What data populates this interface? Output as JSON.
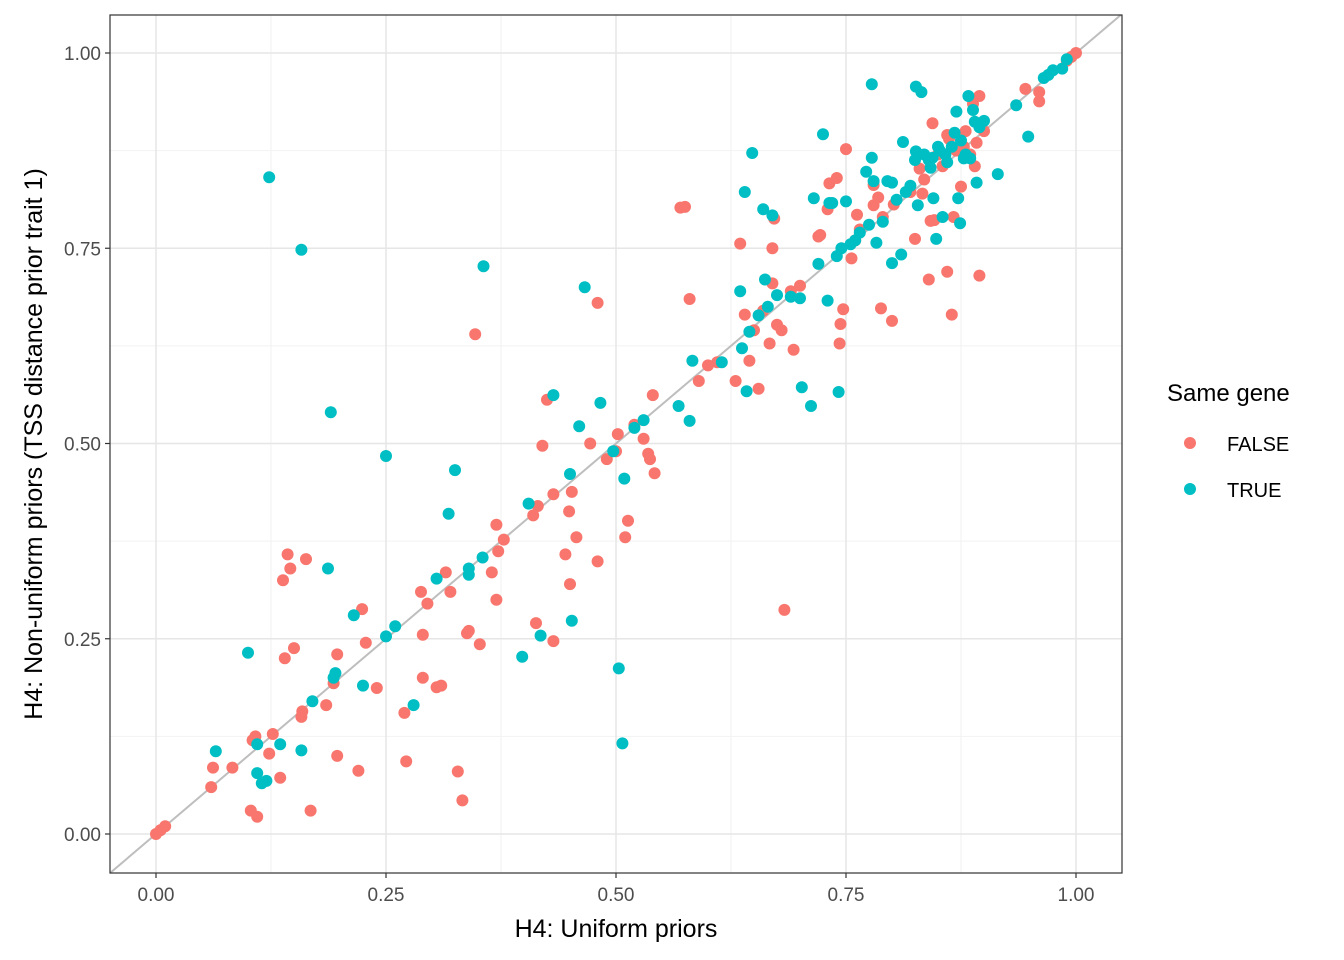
{
  "chart_data": {
    "type": "scatter",
    "title": "",
    "xlabel": "H4: Uniform priors",
    "ylabel": "H4: Non-uniform priors (TSS distance prior trait 1)",
    "xlim": [
      -0.045,
      1.045
    ],
    "ylim": [
      -0.05,
      1.05
    ],
    "x_ticks": [
      "0.00",
      "0.25",
      "0.50",
      "0.75",
      "1.00"
    ],
    "y_ticks": [
      "0.00",
      "0.25",
      "0.50",
      "0.75",
      "1.00"
    ],
    "grid": true,
    "reference_line": "y = x",
    "legend": {
      "title": "Same gene",
      "position": "right",
      "entries": [
        {
          "name": "FALSE",
          "color": "#F8766D"
        },
        {
          "name": "TRUE",
          "color": "#00BFC4"
        }
      ]
    },
    "series": [
      {
        "name": "FALSE",
        "color": "#F8766D",
        "points": [
          [
            0.0,
            0.0
          ],
          [
            0.005,
            0.005
          ],
          [
            0.01,
            0.01
          ],
          [
            0.06,
            0.06
          ],
          [
            0.062,
            0.085
          ],
          [
            0.083,
            0.085
          ],
          [
            0.103,
            0.03
          ],
          [
            0.105,
            0.12
          ],
          [
            0.108,
            0.125
          ],
          [
            0.11,
            0.022
          ],
          [
            0.123,
            0.103
          ],
          [
            0.127,
            0.128
          ],
          [
            0.135,
            0.072
          ],
          [
            0.138,
            0.325
          ],
          [
            0.14,
            0.225
          ],
          [
            0.143,
            0.358
          ],
          [
            0.146,
            0.34
          ],
          [
            0.15,
            0.238
          ],
          [
            0.158,
            0.15
          ],
          [
            0.159,
            0.157
          ],
          [
            0.163,
            0.352
          ],
          [
            0.168,
            0.03
          ],
          [
            0.185,
            0.165
          ],
          [
            0.193,
            0.193
          ],
          [
            0.197,
            0.1
          ],
          [
            0.197,
            0.23
          ],
          [
            0.22,
            0.081
          ],
          [
            0.224,
            0.288
          ],
          [
            0.228,
            0.245
          ],
          [
            0.24,
            0.187
          ],
          [
            0.27,
            0.155
          ],
          [
            0.272,
            0.093
          ],
          [
            0.288,
            0.31
          ],
          [
            0.29,
            0.255
          ],
          [
            0.29,
            0.2
          ],
          [
            0.295,
            0.295
          ],
          [
            0.305,
            0.188
          ],
          [
            0.31,
            0.19
          ],
          [
            0.315,
            0.335
          ],
          [
            0.32,
            0.31
          ],
          [
            0.328,
            0.08
          ],
          [
            0.333,
            0.043
          ],
          [
            0.338,
            0.257
          ],
          [
            0.34,
            0.26
          ],
          [
            0.347,
            0.64
          ],
          [
            0.352,
            0.243
          ],
          [
            0.365,
            0.335
          ],
          [
            0.37,
            0.396
          ],
          [
            0.37,
            0.3
          ],
          [
            0.372,
            0.362
          ],
          [
            0.378,
            0.377
          ],
          [
            0.41,
            0.408
          ],
          [
            0.413,
            0.27
          ],
          [
            0.415,
            0.42
          ],
          [
            0.42,
            0.497
          ],
          [
            0.425,
            0.556
          ],
          [
            0.432,
            0.247
          ],
          [
            0.432,
            0.435
          ],
          [
            0.445,
            0.358
          ],
          [
            0.449,
            0.413
          ],
          [
            0.45,
            0.32
          ],
          [
            0.452,
            0.438
          ],
          [
            0.457,
            0.38
          ],
          [
            0.472,
            0.5
          ],
          [
            0.48,
            0.68
          ],
          [
            0.48,
            0.349
          ],
          [
            0.49,
            0.48
          ],
          [
            0.5,
            0.49
          ],
          [
            0.502,
            0.512
          ],
          [
            0.51,
            0.38
          ],
          [
            0.513,
            0.401
          ],
          [
            0.52,
            0.524
          ],
          [
            0.53,
            0.506
          ],
          [
            0.535,
            0.487
          ],
          [
            0.537,
            0.48
          ],
          [
            0.54,
            0.562
          ],
          [
            0.542,
            0.462
          ],
          [
            0.57,
            0.802
          ],
          [
            0.575,
            0.803
          ],
          [
            0.58,
            0.685
          ],
          [
            0.59,
            0.58
          ],
          [
            0.6,
            0.6
          ],
          [
            0.61,
            0.604
          ],
          [
            0.63,
            0.58
          ],
          [
            0.635,
            0.756
          ],
          [
            0.64,
            0.665
          ],
          [
            0.645,
            0.606
          ],
          [
            0.65,
            0.645
          ],
          [
            0.655,
            0.57
          ],
          [
            0.66,
            0.67
          ],
          [
            0.667,
            0.628
          ],
          [
            0.67,
            0.705
          ],
          [
            0.67,
            0.75
          ],
          [
            0.672,
            0.788
          ],
          [
            0.675,
            0.652
          ],
          [
            0.68,
            0.645
          ],
          [
            0.683,
            0.287
          ],
          [
            0.69,
            0.695
          ],
          [
            0.693,
            0.62
          ],
          [
            0.7,
            0.702
          ],
          [
            0.72,
            0.765
          ],
          [
            0.722,
            0.767
          ],
          [
            0.73,
            0.8
          ],
          [
            0.732,
            0.833
          ],
          [
            0.74,
            0.84
          ],
          [
            0.743,
            0.628
          ],
          [
            0.744,
            0.653
          ],
          [
            0.747,
            0.672
          ],
          [
            0.75,
            0.877
          ],
          [
            0.756,
            0.737
          ],
          [
            0.76,
            0.76
          ],
          [
            0.762,
            0.793
          ],
          [
            0.765,
            0.774
          ],
          [
            0.78,
            0.805
          ],
          [
            0.78,
            0.831
          ],
          [
            0.785,
            0.815
          ],
          [
            0.788,
            0.673
          ],
          [
            0.79,
            0.79
          ],
          [
            0.8,
            0.657
          ],
          [
            0.802,
            0.806
          ],
          [
            0.82,
            0.822
          ],
          [
            0.825,
            0.762
          ],
          [
            0.83,
            0.852
          ],
          [
            0.833,
            0.82
          ],
          [
            0.835,
            0.838
          ],
          [
            0.84,
            0.71
          ],
          [
            0.842,
            0.785
          ],
          [
            0.844,
            0.91
          ],
          [
            0.846,
            0.786
          ],
          [
            0.85,
            0.87
          ],
          [
            0.855,
            0.855
          ],
          [
            0.86,
            0.895
          ],
          [
            0.86,
            0.72
          ],
          [
            0.862,
            0.89
          ],
          [
            0.865,
            0.665
          ],
          [
            0.867,
            0.79
          ],
          [
            0.87,
            0.875
          ],
          [
            0.875,
            0.829
          ],
          [
            0.878,
            0.88
          ],
          [
            0.88,
            0.9
          ],
          [
            0.885,
            0.87
          ],
          [
            0.888,
            0.935
          ],
          [
            0.89,
            0.855
          ],
          [
            0.892,
            0.885
          ],
          [
            0.895,
            0.945
          ],
          [
            0.895,
            0.715
          ],
          [
            0.9,
            0.9
          ],
          [
            0.945,
            0.954
          ],
          [
            0.96,
            0.938
          ],
          [
            0.96,
            0.95
          ],
          [
            0.99,
            0.99
          ],
          [
            0.995,
            0.995
          ],
          [
            1.0,
            1.0
          ]
        ]
      },
      {
        "name": "TRUE",
        "color": "#00BFC4",
        "points": [
          [
            0.065,
            0.106
          ],
          [
            0.1,
            0.232
          ],
          [
            0.11,
            0.078
          ],
          [
            0.11,
            0.115
          ],
          [
            0.115,
            0.065
          ],
          [
            0.12,
            0.068
          ],
          [
            0.123,
            0.841
          ],
          [
            0.135,
            0.115
          ],
          [
            0.158,
            0.748
          ],
          [
            0.158,
            0.107
          ],
          [
            0.17,
            0.17
          ],
          [
            0.187,
            0.34
          ],
          [
            0.19,
            0.54
          ],
          [
            0.193,
            0.2
          ],
          [
            0.195,
            0.206
          ],
          [
            0.215,
            0.28
          ],
          [
            0.225,
            0.19
          ],
          [
            0.25,
            0.253
          ],
          [
            0.25,
            0.484
          ],
          [
            0.26,
            0.266
          ],
          [
            0.28,
            0.165
          ],
          [
            0.305,
            0.327
          ],
          [
            0.318,
            0.41
          ],
          [
            0.325,
            0.466
          ],
          [
            0.34,
            0.332
          ],
          [
            0.34,
            0.34
          ],
          [
            0.355,
            0.354
          ],
          [
            0.356,
            0.727
          ],
          [
            0.398,
            0.227
          ],
          [
            0.405,
            0.423
          ],
          [
            0.418,
            0.254
          ],
          [
            0.432,
            0.562
          ],
          [
            0.45,
            0.461
          ],
          [
            0.452,
            0.273
          ],
          [
            0.46,
            0.522
          ],
          [
            0.466,
            0.7
          ],
          [
            0.483,
            0.552
          ],
          [
            0.497,
            0.49
          ],
          [
            0.503,
            0.212
          ],
          [
            0.507,
            0.116
          ],
          [
            0.509,
            0.455
          ],
          [
            0.52,
            0.52
          ],
          [
            0.53,
            0.53
          ],
          [
            0.568,
            0.548
          ],
          [
            0.58,
            0.529
          ],
          [
            0.583,
            0.606
          ],
          [
            0.615,
            0.604
          ],
          [
            0.635,
            0.695
          ],
          [
            0.637,
            0.622
          ],
          [
            0.64,
            0.822
          ],
          [
            0.642,
            0.567
          ],
          [
            0.645,
            0.643
          ],
          [
            0.648,
            0.872
          ],
          [
            0.655,
            0.664
          ],
          [
            0.66,
            0.8
          ],
          [
            0.662,
            0.71
          ],
          [
            0.665,
            0.675
          ],
          [
            0.67,
            0.792
          ],
          [
            0.675,
            0.69
          ],
          [
            0.69,
            0.688
          ],
          [
            0.7,
            0.686
          ],
          [
            0.702,
            0.572
          ],
          [
            0.712,
            0.548
          ],
          [
            0.715,
            0.814
          ],
          [
            0.72,
            0.73
          ],
          [
            0.725,
            0.896
          ],
          [
            0.73,
            0.683
          ],
          [
            0.732,
            0.808
          ],
          [
            0.735,
            0.808
          ],
          [
            0.74,
            0.74
          ],
          [
            0.742,
            0.566
          ],
          [
            0.745,
            0.75
          ],
          [
            0.75,
            0.81
          ],
          [
            0.755,
            0.755
          ],
          [
            0.76,
            0.76
          ],
          [
            0.765,
            0.77
          ],
          [
            0.772,
            0.848
          ],
          [
            0.775,
            0.78
          ],
          [
            0.778,
            0.866
          ],
          [
            0.778,
            0.96
          ],
          [
            0.78,
            0.836
          ],
          [
            0.783,
            0.757
          ],
          [
            0.79,
            0.784
          ],
          [
            0.795,
            0.836
          ],
          [
            0.8,
            0.731
          ],
          [
            0.8,
            0.834
          ],
          [
            0.805,
            0.812
          ],
          [
            0.81,
            0.742
          ],
          [
            0.812,
            0.886
          ],
          [
            0.815,
            0.822
          ],
          [
            0.82,
            0.83
          ],
          [
            0.825,
            0.863
          ],
          [
            0.826,
            0.874
          ],
          [
            0.826,
            0.957
          ],
          [
            0.828,
            0.805
          ],
          [
            0.832,
            0.95
          ],
          [
            0.835,
            0.87
          ],
          [
            0.84,
            0.863
          ],
          [
            0.842,
            0.853
          ],
          [
            0.844,
            0.866
          ],
          [
            0.845,
            0.814
          ],
          [
            0.848,
            0.762
          ],
          [
            0.85,
            0.88
          ],
          [
            0.852,
            0.875
          ],
          [
            0.855,
            0.79
          ],
          [
            0.858,
            0.87
          ],
          [
            0.86,
            0.86
          ],
          [
            0.865,
            0.88
          ],
          [
            0.868,
            0.898
          ],
          [
            0.87,
            0.925
          ],
          [
            0.872,
            0.814
          ],
          [
            0.874,
            0.782
          ],
          [
            0.875,
            0.888
          ],
          [
            0.878,
            0.865
          ],
          [
            0.88,
            0.87
          ],
          [
            0.883,
            0.945
          ],
          [
            0.885,
            0.865
          ],
          [
            0.888,
            0.927
          ],
          [
            0.89,
            0.912
          ],
          [
            0.892,
            0.834
          ],
          [
            0.895,
            0.905
          ],
          [
            0.9,
            0.913
          ],
          [
            0.915,
            0.845
          ],
          [
            0.935,
            0.933
          ],
          [
            0.948,
            0.893
          ],
          [
            0.965,
            0.968
          ],
          [
            0.97,
            0.972
          ],
          [
            0.975,
            0.978
          ],
          [
            0.985,
            0.98
          ],
          [
            0.99,
            0.992
          ]
        ]
      }
    ]
  }
}
